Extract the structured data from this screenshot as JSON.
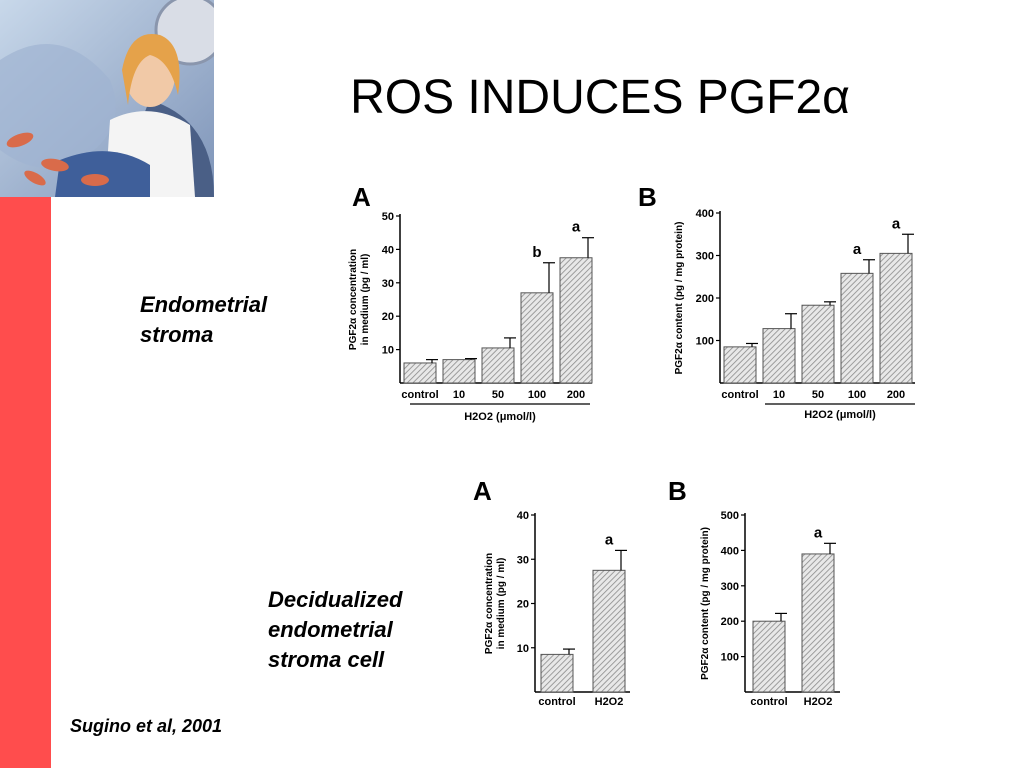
{
  "slide": {
    "title": "ROS INDUCES PGF2",
    "title_symbol": "α",
    "label_top_line1": "Endometrial",
    "label_top_line2": "stroma",
    "label_bottom_line1": "Decidualized",
    "label_bottom_line2": "endometrial",
    "label_bottom_line3": "stroma cell",
    "citation": "Sugino et al, 2001"
  },
  "colors": {
    "accent_bar": "#ff4d4d",
    "bar_fill": "#b0b0b0"
  },
  "chart_data": [
    {
      "panel": "A",
      "type": "bar",
      "categories": [
        "control",
        "10",
        "50",
        "100",
        "200"
      ],
      "values": [
        6,
        7,
        10.5,
        27,
        37.5
      ],
      "errors": [
        1,
        0.3,
        3,
        9,
        6
      ],
      "sig": [
        "",
        "",
        "",
        "b",
        "a"
      ],
      "ylabel_line1": "PGF2α concentration",
      "ylabel_line2": "in medium (pg / ml)",
      "yticks": [
        10,
        20,
        30,
        40,
        50
      ],
      "ylim": [
        0,
        50
      ],
      "group_label": "H2O2 (μmol/l)",
      "grid": false
    },
    {
      "panel": "B",
      "type": "bar",
      "categories": [
        "control",
        "10",
        "50",
        "100",
        "200"
      ],
      "values": [
        85,
        128,
        183,
        258,
        305
      ],
      "errors": [
        8,
        35,
        8,
        32,
        45
      ],
      "sig": [
        "",
        "",
        "",
        "a",
        "a"
      ],
      "ylabel_line1": "PGF2α content (pg / mg protein)",
      "ylabel_line2": "",
      "yticks": [
        100,
        200,
        300,
        400
      ],
      "ylim": [
        0,
        400
      ],
      "group_label": "H2O2 (μmol/l)",
      "grid": false
    },
    {
      "panel": "A",
      "type": "bar",
      "categories": [
        "control",
        "H2O2"
      ],
      "values": [
        8.5,
        27.5
      ],
      "errors": [
        1.2,
        4.5
      ],
      "sig": [
        "",
        "a"
      ],
      "ylabel_line1": "PGF2α concentration",
      "ylabel_line2": "in medium (pg / ml)",
      "yticks": [
        10,
        20,
        30,
        40
      ],
      "ylim": [
        0,
        40
      ],
      "group_label": "",
      "grid": false
    },
    {
      "panel": "B",
      "type": "bar",
      "categories": [
        "control",
        "H2O2"
      ],
      "values": [
        200,
        390
      ],
      "errors": [
        22,
        30
      ],
      "sig": [
        "",
        "a"
      ],
      "ylabel_line1": "PGF2α content (pg / mg protein)",
      "ylabel_line2": "",
      "yticks": [
        100,
        200,
        300,
        400,
        500
      ],
      "ylim": [
        0,
        500
      ],
      "group_label": "",
      "grid": false
    }
  ]
}
